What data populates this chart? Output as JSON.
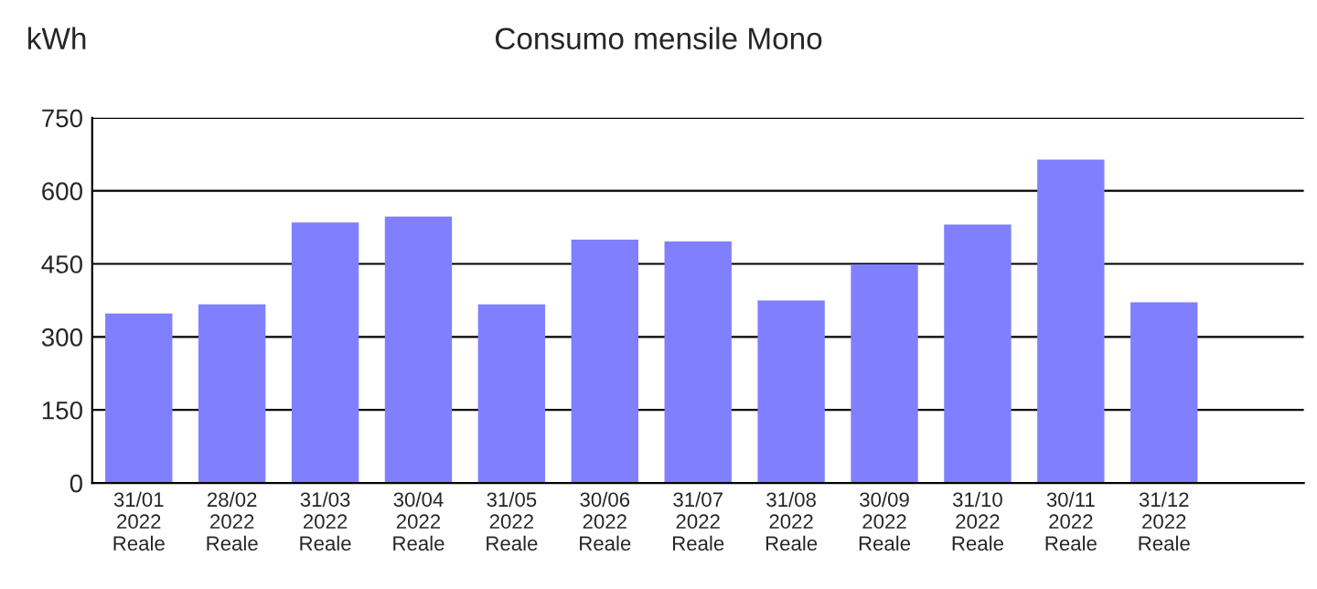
{
  "chart_data": {
    "type": "bar",
    "title": "Consumo mensile Mono",
    "ylabel": "kWh",
    "categories": [
      "31/01\n2022\nReale",
      "28/02\n2022\nReale",
      "31/03\n2022\nReale",
      "30/04\n2022\nReale",
      "31/05\n2022\nReale",
      "30/06\n2022\nReale",
      "31/07\n2022\nReale",
      "31/08\n2022\nReale",
      "30/09\n2022\nReale",
      "31/10\n2022\nReale",
      "30/11\n2022\nReale",
      "31/12\n2022\nReale"
    ],
    "values": [
      348,
      367,
      535,
      547,
      367,
      500,
      496,
      375,
      449,
      531,
      664,
      371
    ],
    "color": "#8080ff",
    "ylim": [
      0,
      750
    ],
    "yticks": [
      0,
      150,
      300,
      450,
      600,
      750
    ],
    "grid": "y",
    "legend": false
  }
}
